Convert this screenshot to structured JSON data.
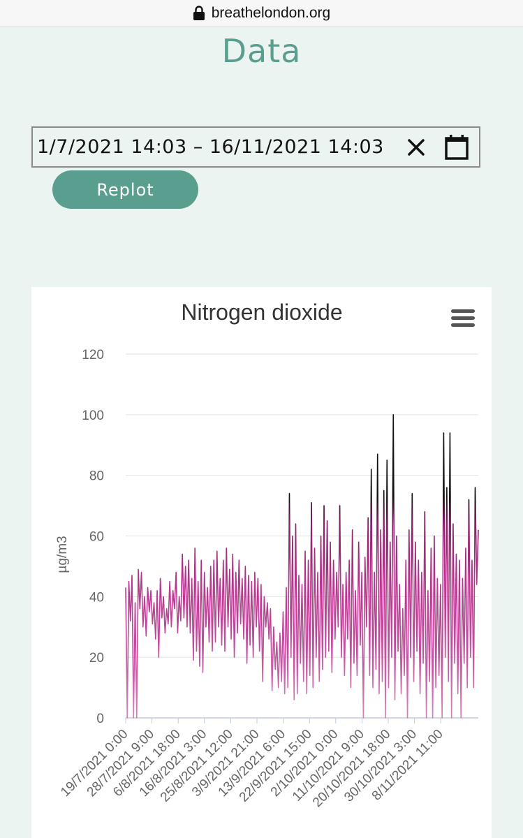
{
  "browser": {
    "url": "breathelondon.org"
  },
  "page": {
    "title": "Data"
  },
  "date_range": {
    "value": "1/7/2021 14:03 – 16/11/2021 14:03"
  },
  "replot_label": "Replot",
  "colors": {
    "accent": "#5a9e8f",
    "page_background": "#ecf4f2",
    "line_low": "#d27bb6",
    "line_mid": "#c0409a",
    "line_high": "#8a1f68",
    "line_peak": "#111111"
  },
  "icons": [
    "lock-icon",
    "clear-icon",
    "calendar-icon",
    "hamburger-menu-icon"
  ],
  "chart_data": {
    "type": "line",
    "title": "Nitrogen dioxide",
    "xlabel": "",
    "ylabel": "µg/m3",
    "ylim": [
      0,
      120
    ],
    "yticks": [
      0,
      20,
      40,
      60,
      80,
      100,
      120
    ],
    "grid": true,
    "legend": "none",
    "x_start": "19/7/2021 0:00",
    "x_end": "16/11/2021 14:03",
    "x_tick_labels": [
      "19/7/2021 0:00",
      "28/7/2021 9:00",
      "6/8/2021 18:00",
      "16/8/2021 3:00",
      "25/8/2021 12:00",
      "3/9/2021 21:00",
      "13/9/2021 6:00",
      "22/9/2021 15:00",
      "2/10/2021 0:00",
      "11/10/2021 9:00",
      "20/10/2021 18:00",
      "30/10/2021 3:00",
      "8/11/2021 11:00"
    ],
    "series": [
      {
        "values": [
          43,
          0,
          45,
          32,
          47,
          0,
          38,
          0,
          49,
          36,
          48,
          30,
          40,
          27,
          43,
          35,
          42,
          31,
          38,
          26,
          42,
          20,
          46,
          33,
          40,
          28,
          36,
          31,
          45,
          30,
          42,
          36,
          48,
          28,
          40,
          32,
          54,
          33,
          50,
          30,
          52,
          28,
          46,
          19,
          56,
          22,
          45,
          17,
          52,
          15,
          48,
          30,
          43,
          25,
          50,
          22,
          52,
          25,
          55,
          30,
          46,
          24,
          52,
          22,
          56,
          30,
          49,
          26,
          54,
          20,
          48,
          28,
          52,
          31,
          46,
          26,
          50,
          18,
          47,
          24,
          45,
          20,
          48,
          30,
          46,
          22,
          44,
          12,
          40,
          30,
          38,
          26,
          36,
          9,
          30,
          16,
          25,
          10,
          28,
          12,
          35,
          8,
          43,
          10,
          74,
          20,
          60,
          6,
          64,
          8,
          47,
          18,
          44,
          12,
          55,
          8,
          52,
          14,
          71,
          10,
          56,
          20,
          48,
          12,
          60,
          16,
          70,
          20,
          65,
          22,
          58,
          15,
          52,
          26,
          48,
          30,
          70,
          20,
          44,
          14,
          48,
          26,
          52,
          10,
          62,
          18,
          42,
          14,
          58,
          24,
          48,
          0,
          53,
          30,
          66,
          14,
          82,
          10,
          48,
          16,
          87,
          8,
          62,
          12,
          75,
          0,
          85,
          10,
          58,
          20,
          100,
          6,
          60,
          22,
          44,
          8,
          36,
          14,
          52,
          0,
          62,
          20,
          74,
          12,
          58,
          22,
          52,
          8,
          48,
          18,
          68,
          0,
          42,
          12,
          56,
          0,
          60,
          10,
          46,
          14,
          44,
          0,
          94,
          20,
          76,
          12,
          94,
          0,
          64,
          18,
          54,
          8,
          52,
          0,
          46,
          18,
          56,
          10,
          72,
          20,
          52,
          10,
          76,
          44,
          62
        ]
      }
    ]
  }
}
